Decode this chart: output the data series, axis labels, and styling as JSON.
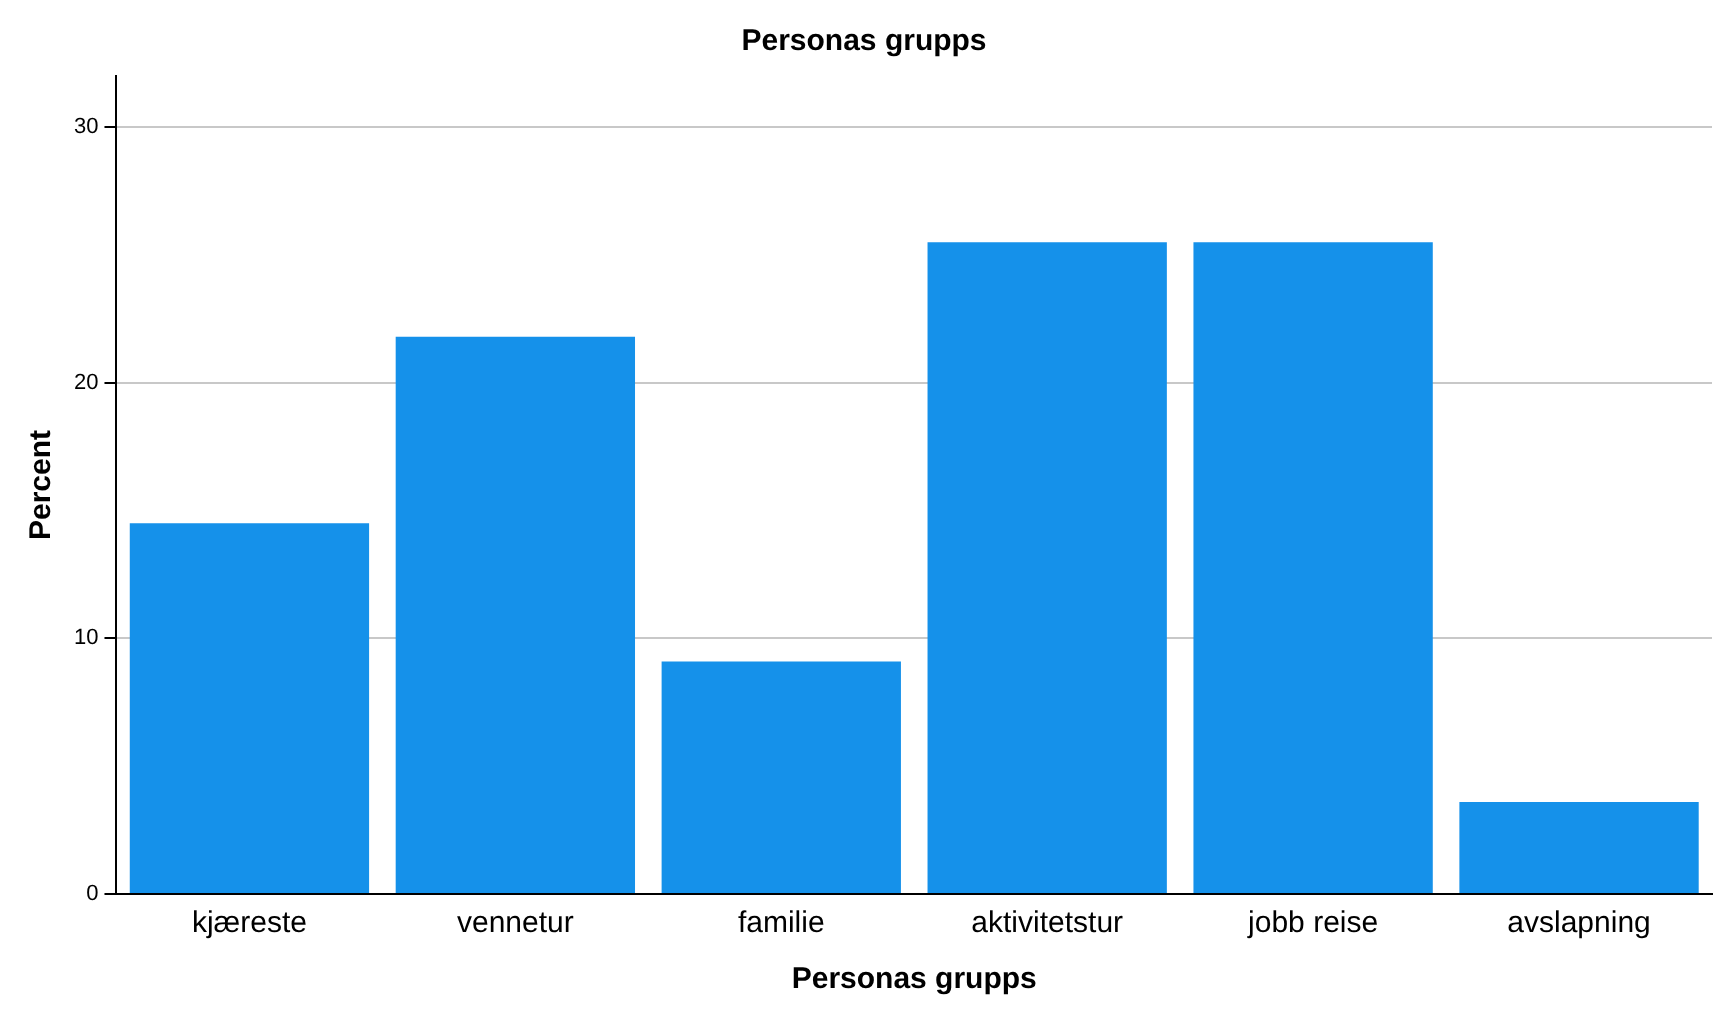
{
  "chart_data": {
    "type": "bar",
    "title": "Personas grupps",
    "xlabel": "Personas grupps",
    "ylabel": "Percent",
    "categories": [
      "kjæreste",
      "vennetur",
      "familie",
      "aktivitetstur",
      "jobb reise",
      "avslapning"
    ],
    "values": [
      14.5,
      21.8,
      9.1,
      25.5,
      25.5,
      3.6
    ],
    "color": "#1591ea",
    "ylim": [
      0,
      32
    ],
    "yticks": [
      0,
      10,
      20,
      30
    ],
    "grid": "y",
    "legend": false
  }
}
